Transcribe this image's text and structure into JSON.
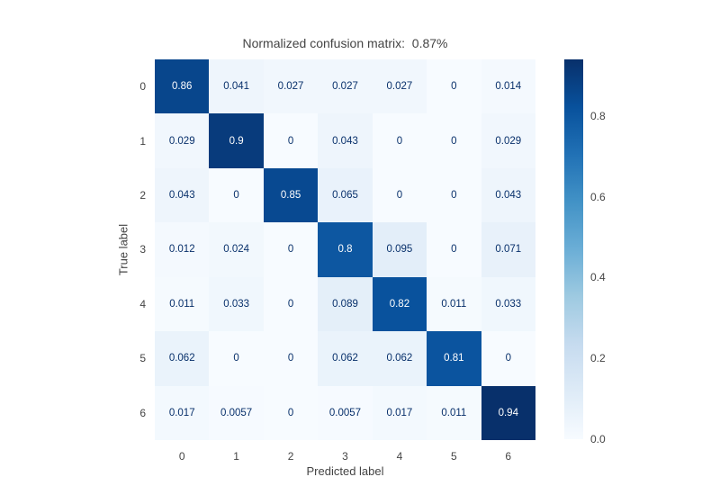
{
  "title": "Normalized confusion matrix:  0.87%",
  "colors": {
    "background": "#ffffff",
    "label_text": "#444444",
    "annotation_dark": "#08306b",
    "annotation_light": "#ffffff"
  },
  "chart_data": {
    "type": "heatmap",
    "title": "Normalized confusion matrix:  0.87%",
    "xlabel": "Predicted label",
    "ylabel": "True label",
    "x_ticks": [
      "0",
      "1",
      "2",
      "3",
      "4",
      "5",
      "6"
    ],
    "y_ticks": [
      "0",
      "1",
      "2",
      "3",
      "4",
      "5",
      "6"
    ],
    "values": [
      [
        0.86,
        0.041,
        0.027,
        0.027,
        0.027,
        0,
        0.014
      ],
      [
        0.029,
        0.9,
        0,
        0.043,
        0,
        0,
        0.029
      ],
      [
        0.043,
        0,
        0.85,
        0.065,
        0,
        0,
        0.043
      ],
      [
        0.012,
        0.024,
        0,
        0.8,
        0.095,
        0,
        0.071
      ],
      [
        0.011,
        0.033,
        0,
        0.089,
        0.82,
        0.011,
        0.033
      ],
      [
        0.062,
        0,
        0,
        0.062,
        0.062,
        0.81,
        0
      ],
      [
        0.017,
        0.0057,
        0,
        0.0057,
        0.017,
        0.011,
        0.94
      ]
    ],
    "zmin": 0,
    "zmax": 0.94,
    "colorscale_name": "Blues",
    "colorscale": [
      [
        0,
        "#f7fbff"
      ],
      [
        0.125,
        "#deebf7"
      ],
      [
        0.25,
        "#c6dbef"
      ],
      [
        0.375,
        "#9ecae1"
      ],
      [
        0.5,
        "#6baed6"
      ],
      [
        0.625,
        "#4292c6"
      ],
      [
        0.75,
        "#2171b5"
      ],
      [
        0.875,
        "#08519c"
      ],
      [
        1,
        "#08306b"
      ]
    ],
    "colorbar_ticks": [
      "0.0",
      "0.2",
      "0.4",
      "0.6",
      "0.8"
    ],
    "legend_position": "right",
    "grid": false
  }
}
